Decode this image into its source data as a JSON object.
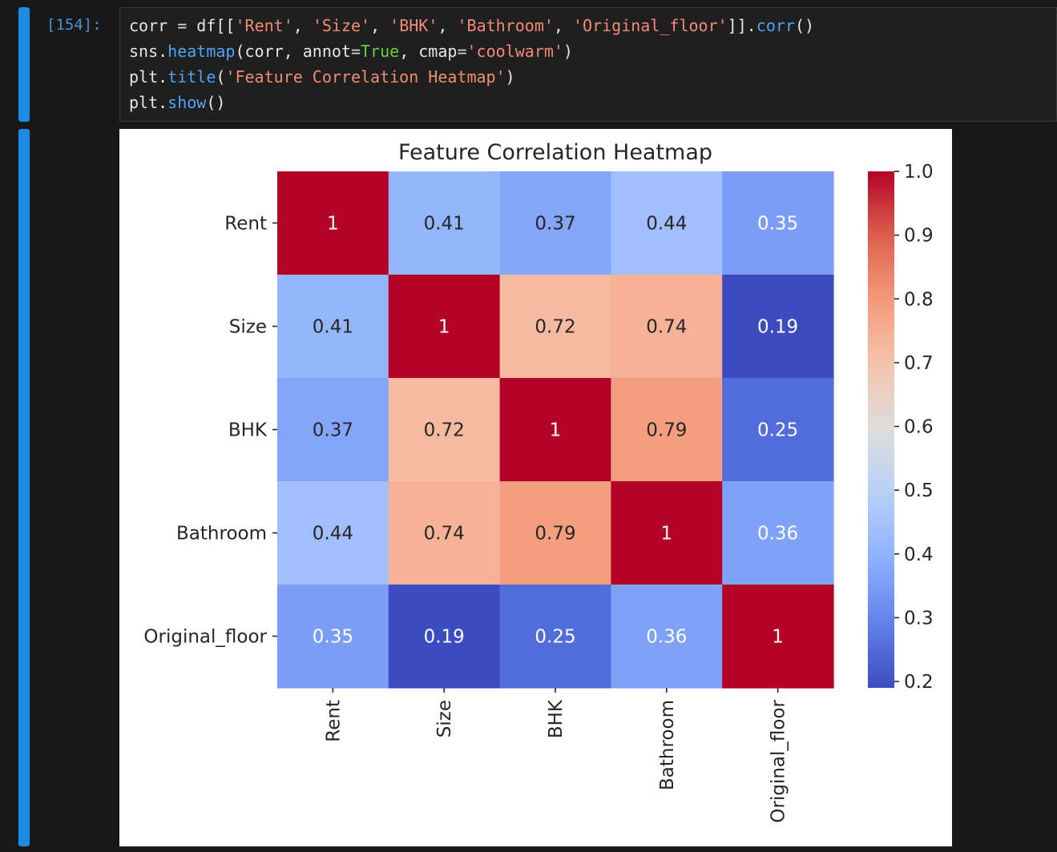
{
  "prompt": "[154]:",
  "code_lines": [
    [
      {
        "t": "corr ",
        "c": "#e6e6e6"
      },
      {
        "t": "=",
        "c": "#d4d4d4"
      },
      {
        "t": " df[[",
        "c": "#e6e6e6"
      },
      {
        "t": "'Rent'",
        "c": "#f28b73"
      },
      {
        "t": ", ",
        "c": "#e6e6e6"
      },
      {
        "t": "'Size'",
        "c": "#f28b73"
      },
      {
        "t": ", ",
        "c": "#e6e6e6"
      },
      {
        "t": "'BHK'",
        "c": "#f28b73"
      },
      {
        "t": ", ",
        "c": "#e6e6e6"
      },
      {
        "t": "'Bathroom'",
        "c": "#f28b73"
      },
      {
        "t": ", ",
        "c": "#e6e6e6"
      },
      {
        "t": "'Original_floor'",
        "c": "#f28b73"
      },
      {
        "t": "]].",
        "c": "#e6e6e6"
      },
      {
        "t": "corr",
        "c": "#4fa3f7"
      },
      {
        "t": "()",
        "c": "#e6e6e6"
      }
    ],
    [
      {
        "t": "sns.",
        "c": "#e6e6e6"
      },
      {
        "t": "heatmap",
        "c": "#4fa3f7"
      },
      {
        "t": "(corr, annot",
        "c": "#e6e6e6"
      },
      {
        "t": "=",
        "c": "#d4d4d4"
      },
      {
        "t": "True",
        "c": "#6ccb3e"
      },
      {
        "t": ", cmap",
        "c": "#e6e6e6"
      },
      {
        "t": "=",
        "c": "#d4d4d4"
      },
      {
        "t": "'coolwarm'",
        "c": "#f28b73"
      },
      {
        "t": ")",
        "c": "#e6e6e6"
      }
    ],
    [
      {
        "t": "plt.",
        "c": "#e6e6e6"
      },
      {
        "t": "title",
        "c": "#4fa3f7"
      },
      {
        "t": "(",
        "c": "#e6e6e6"
      },
      {
        "t": "'Feature Correlation Heatmap'",
        "c": "#f28b73"
      },
      {
        "t": ")",
        "c": "#e6e6e6"
      }
    ],
    [
      {
        "t": "plt.",
        "c": "#e6e6e6"
      },
      {
        "t": "show",
        "c": "#4fa3f7"
      },
      {
        "t": "()",
        "c": "#e6e6e6"
      }
    ]
  ],
  "chart_data": {
    "type": "heatmap",
    "title": "Feature Correlation Heatmap",
    "rows": [
      "Rent",
      "Size",
      "BHK",
      "Bathroom",
      "Original_floor"
    ],
    "cols": [
      "Rent",
      "Size",
      "BHK",
      "Bathroom",
      "Original_floor"
    ],
    "values": [
      [
        1,
        0.41,
        0.37,
        0.44,
        0.35
      ],
      [
        0.41,
        1,
        0.72,
        0.74,
        0.19
      ],
      [
        0.37,
        0.72,
        1,
        0.79,
        0.25
      ],
      [
        0.44,
        0.74,
        0.79,
        1,
        0.36
      ],
      [
        0.35,
        0.19,
        0.25,
        0.36,
        1
      ]
    ],
    "annotations": [
      [
        "1",
        "0.41",
        "0.37",
        "0.44",
        "0.35"
      ],
      [
        "0.41",
        "1",
        "0.72",
        "0.74",
        "0.19"
      ],
      [
        "0.37",
        "0.72",
        "1",
        "0.79",
        "0.25"
      ],
      [
        "0.44",
        "0.74",
        "0.79",
        "1",
        "0.36"
      ],
      [
        "0.35",
        "0.19",
        "0.25",
        "0.36",
        "1"
      ]
    ],
    "colormap": "coolwarm",
    "vmin": 0.19,
    "vmax": 1.0,
    "colorbar": {
      "ticks": [
        0.2,
        0.3,
        0.4,
        0.5,
        0.6,
        0.7,
        0.8,
        0.9,
        1.0
      ],
      "tick_labels": [
        "0.2",
        "0.3",
        "0.4",
        "0.5",
        "0.6",
        "0.7",
        "0.8",
        "0.9",
        "1.0"
      ]
    }
  }
}
